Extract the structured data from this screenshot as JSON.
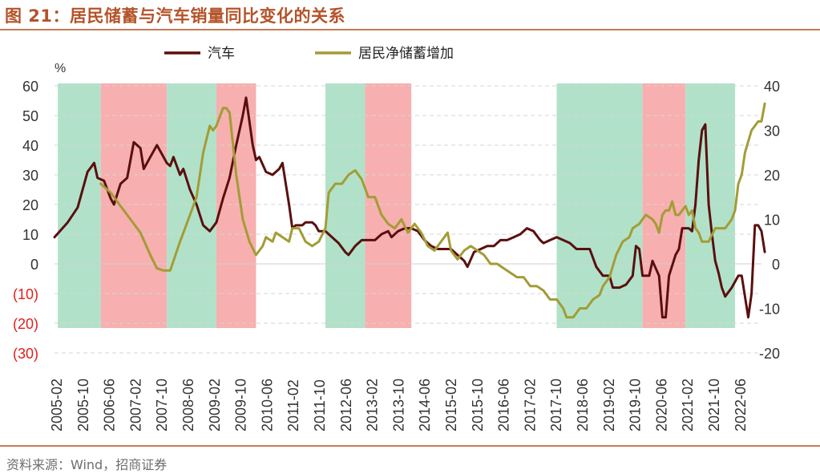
{
  "figure": {
    "title": "图 21：居民储蓄与汽车销量同比变化的关系",
    "source": "资料来源：Wind，招商证券"
  },
  "chart_data": {
    "type": "line",
    "left_axis": {
      "unit_label": "%",
      "ylim": [
        -30,
        60
      ],
      "ticks": [
        60,
        50,
        40,
        30,
        20,
        10,
        0,
        -10,
        -20,
        -30
      ],
      "tick_labels": [
        "60",
        "50",
        "40",
        "30",
        "20",
        "10",
        "0",
        "(10)",
        "(20)",
        "(30)"
      ]
    },
    "right_axis": {
      "ylim": [
        -20,
        40
      ],
      "ticks": [
        40,
        30,
        20,
        10,
        0,
        -10,
        -20
      ],
      "tick_labels": [
        "40",
        "30",
        "20",
        "10",
        "0",
        "-10",
        "-20"
      ]
    },
    "x_tick_labels": [
      "2005-02",
      "2005-10",
      "2006-06",
      "2007-02",
      "2007-10",
      "2008-06",
      "2009-02",
      "2009-10",
      "2010-06",
      "2011-02",
      "2011-10",
      "2012-06",
      "2013-02",
      "2013-10",
      "2014-06",
      "2015-02",
      "2015-10",
      "2016-06",
      "2017-02",
      "2017-10",
      "2018-06",
      "2019-02",
      "2019-10",
      "2020-06",
      "2021-02",
      "2021-10",
      "2022-06"
    ],
    "x_range": [
      "2005-02",
      "2022-12"
    ],
    "grid": true,
    "legend_position": "top",
    "shaded_periods": [
      {
        "start": "2005-03",
        "end": "2006-04",
        "color": "green"
      },
      {
        "start": "2006-04",
        "end": "2007-12",
        "color": "red"
      },
      {
        "start": "2007-12",
        "end": "2009-03",
        "color": "green"
      },
      {
        "start": "2009-03",
        "end": "2010-03",
        "color": "red"
      },
      {
        "start": "2011-12",
        "end": "2012-12",
        "color": "green"
      },
      {
        "start": "2012-12",
        "end": "2014-02",
        "color": "red"
      },
      {
        "start": "2017-10",
        "end": "2019-12",
        "color": "green"
      },
      {
        "start": "2019-12",
        "end": "2021-01",
        "color": "red"
      },
      {
        "start": "2021-01",
        "end": "2022-04",
        "color": "green"
      }
    ],
    "series": [
      {
        "name": "汽车",
        "axis": "left",
        "color": "#5a0f0f",
        "points": [
          [
            "2005-02",
            9
          ],
          [
            "2005-06",
            14
          ],
          [
            "2005-09",
            19
          ],
          [
            "2005-12",
            31
          ],
          [
            "2006-02",
            34
          ],
          [
            "2006-03",
            29
          ],
          [
            "2006-05",
            28
          ],
          [
            "2006-07",
            22
          ],
          [
            "2006-08",
            20
          ],
          [
            "2006-10",
            27
          ],
          [
            "2006-12",
            29
          ],
          [
            "2007-02",
            41
          ],
          [
            "2007-04",
            39
          ],
          [
            "2007-05",
            32
          ],
          [
            "2007-07",
            36
          ],
          [
            "2007-09",
            40
          ],
          [
            "2007-10",
            38
          ],
          [
            "2007-12",
            34
          ],
          [
            "2008-01",
            33
          ],
          [
            "2008-02",
            36
          ],
          [
            "2008-04",
            30
          ],
          [
            "2008-05",
            32
          ],
          [
            "2008-07",
            25
          ],
          [
            "2008-09",
            20
          ],
          [
            "2008-11",
            13
          ],
          [
            "2009-01",
            11
          ],
          [
            "2009-03",
            14
          ],
          [
            "2009-05",
            22
          ],
          [
            "2009-07",
            29
          ],
          [
            "2009-09",
            40
          ],
          [
            "2009-11",
            50
          ],
          [
            "2009-12",
            56
          ],
          [
            "2010-02",
            40
          ],
          [
            "2010-03",
            35
          ],
          [
            "2010-04",
            36
          ],
          [
            "2010-06",
            31
          ],
          [
            "2010-08",
            30
          ],
          [
            "2010-10",
            32
          ],
          [
            "2010-11",
            34
          ],
          [
            "2011-01",
            20
          ],
          [
            "2011-02",
            12
          ],
          [
            "2011-03",
            13
          ],
          [
            "2011-05",
            13
          ],
          [
            "2011-06",
            14
          ],
          [
            "2011-08",
            14
          ],
          [
            "2011-09",
            13
          ],
          [
            "2011-10",
            11
          ],
          [
            "2011-12",
            11
          ],
          [
            "2012-02",
            9
          ],
          [
            "2012-04",
            7
          ],
          [
            "2012-06",
            4
          ],
          [
            "2012-07",
            3
          ],
          [
            "2012-09",
            6
          ],
          [
            "2012-11",
            8
          ],
          [
            "2013-01",
            8
          ],
          [
            "2013-03",
            8
          ],
          [
            "2013-05",
            10
          ],
          [
            "2013-07",
            11
          ],
          [
            "2013-08",
            9
          ],
          [
            "2013-10",
            11
          ],
          [
            "2013-12",
            12
          ],
          [
            "2014-02",
            12
          ],
          [
            "2014-04",
            11
          ],
          [
            "2014-06",
            8
          ],
          [
            "2014-08",
            6
          ],
          [
            "2014-10",
            5
          ],
          [
            "2014-12",
            5
          ],
          [
            "2015-02",
            5
          ],
          [
            "2015-04",
            3
          ],
          [
            "2015-06",
            1
          ],
          [
            "2015-07",
            -1
          ],
          [
            "2015-09",
            4
          ],
          [
            "2015-11",
            5
          ],
          [
            "2016-01",
            6
          ],
          [
            "2016-03",
            6
          ],
          [
            "2016-05",
            8
          ],
          [
            "2016-07",
            8
          ],
          [
            "2016-09",
            9
          ],
          [
            "2016-11",
            10
          ],
          [
            "2017-01",
            12
          ],
          [
            "2017-03",
            11
          ],
          [
            "2017-05",
            8
          ],
          [
            "2017-06",
            7
          ],
          [
            "2017-08",
            8
          ],
          [
            "2017-10",
            9
          ],
          [
            "2017-12",
            8
          ],
          [
            "2018-02",
            7
          ],
          [
            "2018-04",
            5
          ],
          [
            "2018-06",
            5
          ],
          [
            "2018-08",
            5
          ],
          [
            "2018-10",
            -1
          ],
          [
            "2018-12",
            -4
          ],
          [
            "2019-02",
            -4
          ],
          [
            "2019-03",
            -8
          ],
          [
            "2019-05",
            -8
          ],
          [
            "2019-07",
            -7
          ],
          [
            "2019-09",
            -4
          ],
          [
            "2019-10",
            6
          ],
          [
            "2019-11",
            5
          ],
          [
            "2019-12",
            -4
          ],
          [
            "2020-02",
            -4
          ],
          [
            "2020-03",
            1
          ],
          [
            "2020-05",
            -4
          ],
          [
            "2020-06",
            -18
          ],
          [
            "2020-07",
            -18
          ],
          [
            "2020-08",
            -4
          ],
          [
            "2020-10",
            3
          ],
          [
            "2020-11",
            5
          ],
          [
            "2020-12",
            12
          ],
          [
            "2021-02",
            12
          ],
          [
            "2021-03",
            11
          ],
          [
            "2021-04",
            20
          ],
          [
            "2021-05",
            35
          ],
          [
            "2021-06",
            45
          ],
          [
            "2021-07",
            47
          ],
          [
            "2021-08",
            20
          ],
          [
            "2021-09",
            10
          ],
          [
            "2021-10",
            1
          ],
          [
            "2021-11",
            -3
          ],
          [
            "2021-12",
            -8
          ],
          [
            "2022-01",
            -11
          ],
          [
            "2022-03",
            -8
          ],
          [
            "2022-05",
            -4
          ],
          [
            "2022-06",
            -4
          ],
          [
            "2022-08",
            -18
          ],
          [
            "2022-09",
            -10
          ],
          [
            "2022-10",
            13
          ],
          [
            "2022-11",
            13
          ],
          [
            "2022-12",
            11
          ],
          [
            "2023-01",
            4
          ]
        ]
      },
      {
        "name": "居民净储蓄增加",
        "axis": "right",
        "color": "#a39c36",
        "points": [
          [
            "2006-04",
            18
          ],
          [
            "2006-07",
            16
          ],
          [
            "2006-10",
            13
          ],
          [
            "2007-01",
            10
          ],
          [
            "2007-04",
            7
          ],
          [
            "2007-07",
            2
          ],
          [
            "2007-09",
            -1
          ],
          [
            "2007-11",
            -1.5
          ],
          [
            "2008-01",
            -1.5
          ],
          [
            "2008-04",
            5
          ],
          [
            "2008-06",
            9
          ],
          [
            "2008-09",
            15
          ],
          [
            "2008-11",
            25
          ],
          [
            "2009-01",
            31
          ],
          [
            "2009-02",
            30
          ],
          [
            "2009-03",
            31
          ],
          [
            "2009-05",
            35
          ],
          [
            "2009-06",
            35
          ],
          [
            "2009-07",
            34
          ],
          [
            "2009-09",
            20
          ],
          [
            "2009-11",
            10
          ],
          [
            "2010-01",
            5
          ],
          [
            "2010-03",
            2
          ],
          [
            "2010-05",
            4
          ],
          [
            "2010-06",
            6
          ],
          [
            "2010-08",
            5
          ],
          [
            "2010-09",
            7
          ],
          [
            "2010-11",
            6
          ],
          [
            "2011-01",
            5
          ],
          [
            "2011-02",
            8
          ],
          [
            "2011-04",
            8
          ],
          [
            "2011-06",
            5
          ],
          [
            "2011-08",
            4
          ],
          [
            "2011-10",
            5
          ],
          [
            "2011-12",
            8
          ],
          [
            "2012-01",
            16
          ],
          [
            "2012-03",
            18
          ],
          [
            "2012-05",
            18
          ],
          [
            "2012-07",
            20
          ],
          [
            "2012-09",
            21
          ],
          [
            "2012-11",
            19
          ],
          [
            "2013-01",
            15
          ],
          [
            "2013-03",
            15
          ],
          [
            "2013-05",
            11
          ],
          [
            "2013-07",
            9
          ],
          [
            "2013-09",
            8
          ],
          [
            "2013-11",
            10
          ],
          [
            "2014-01",
            7
          ],
          [
            "2014-03",
            9
          ],
          [
            "2014-05",
            7
          ],
          [
            "2014-07",
            4
          ],
          [
            "2014-09",
            3
          ],
          [
            "2014-11",
            5
          ],
          [
            "2015-01",
            7
          ],
          [
            "2015-02",
            3
          ],
          [
            "2015-04",
            1
          ],
          [
            "2015-06",
            3
          ],
          [
            "2015-08",
            4
          ],
          [
            "2015-10",
            3
          ],
          [
            "2015-12",
            2
          ],
          [
            "2016-02",
            0
          ],
          [
            "2016-04",
            0
          ],
          [
            "2016-06",
            -1
          ],
          [
            "2016-08",
            -2
          ],
          [
            "2016-10",
            -3
          ],
          [
            "2016-12",
            -3
          ],
          [
            "2017-02",
            -5
          ],
          [
            "2017-04",
            -5
          ],
          [
            "2017-06",
            -6
          ],
          [
            "2017-08",
            -8
          ],
          [
            "2017-10",
            -8
          ],
          [
            "2017-12",
            -10
          ],
          [
            "2018-01",
            -12
          ],
          [
            "2018-03",
            -12
          ],
          [
            "2018-05",
            -10
          ],
          [
            "2018-07",
            -10
          ],
          [
            "2018-09",
            -8
          ],
          [
            "2018-11",
            -7
          ],
          [
            "2018-12",
            -5
          ],
          [
            "2019-02",
            -3
          ],
          [
            "2019-04",
            2
          ],
          [
            "2019-06",
            5
          ],
          [
            "2019-08",
            6
          ],
          [
            "2019-09",
            8
          ],
          [
            "2019-11",
            9
          ],
          [
            "2019-12",
            10
          ],
          [
            "2020-01",
            11
          ],
          [
            "2020-03",
            10
          ],
          [
            "2020-04",
            9
          ],
          [
            "2020-05",
            7
          ],
          [
            "2020-06",
            11
          ],
          [
            "2020-07",
            12
          ],
          [
            "2020-08",
            12
          ],
          [
            "2020-09",
            14
          ],
          [
            "2020-10",
            11
          ],
          [
            "2020-11",
            11
          ],
          [
            "2020-12",
            12
          ],
          [
            "2021-01",
            13
          ],
          [
            "2021-02",
            11
          ],
          [
            "2021-03",
            12
          ],
          [
            "2021-04",
            8
          ],
          [
            "2021-05",
            7
          ],
          [
            "2021-06",
            5
          ],
          [
            "2021-08",
            5
          ],
          [
            "2021-10",
            8
          ],
          [
            "2021-11",
            8
          ],
          [
            "2022-01",
            8
          ],
          [
            "2022-03",
            10
          ],
          [
            "2022-04",
            12
          ],
          [
            "2022-05",
            18
          ],
          [
            "2022-06",
            20
          ],
          [
            "2022-07",
            25
          ],
          [
            "2022-09",
            30
          ],
          [
            "2022-11",
            32
          ],
          [
            "2022-12",
            32
          ],
          [
            "2023-01",
            36
          ]
        ]
      }
    ]
  }
}
